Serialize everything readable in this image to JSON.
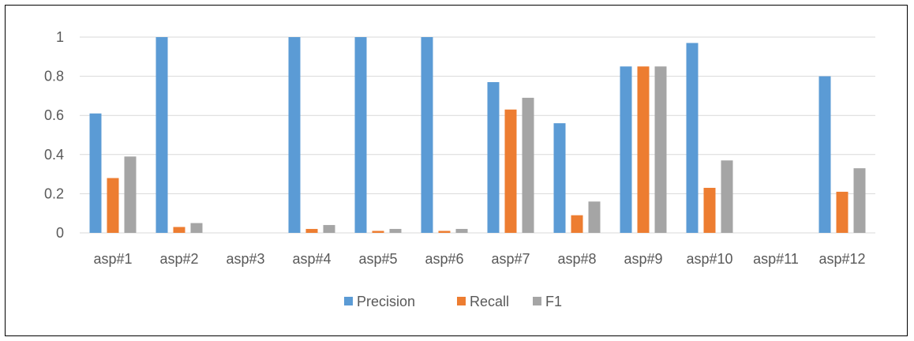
{
  "chart_data": {
    "type": "bar",
    "categories": [
      "asp#1",
      "asp#2",
      "asp#3",
      "asp#4",
      "asp#5",
      "asp#6",
      "asp#7",
      "asp#8",
      "asp#9",
      "asp#10",
      "asp#11",
      "asp#12"
    ],
    "series": [
      {
        "name": "Precision",
        "color": "#5B9BD5",
        "values": [
          0.61,
          1.0,
          0,
          1.0,
          1.0,
          1.0,
          0.77,
          0.56,
          0.85,
          0.97,
          0,
          0.8
        ]
      },
      {
        "name": "Recall",
        "color": "#ED7D31",
        "values": [
          0.28,
          0.03,
          0,
          0.02,
          0.01,
          0.01,
          0.63,
          0.09,
          0.85,
          0.23,
          0,
          0.21
        ]
      },
      {
        "name": "F1",
        "color": "#A5A5A5",
        "values": [
          0.39,
          0.05,
          0,
          0.04,
          0.02,
          0.02,
          0.69,
          0.16,
          0.85,
          0.37,
          0,
          0.33
        ]
      }
    ],
    "yticks": [
      "0",
      "0.2",
      "0.4",
      "0.6",
      "0.8",
      "1"
    ],
    "ylim": [
      0,
      1
    ],
    "grid": true,
    "legend_position": "bottom",
    "title": "",
    "xlabel": "",
    "ylabel": ""
  }
}
